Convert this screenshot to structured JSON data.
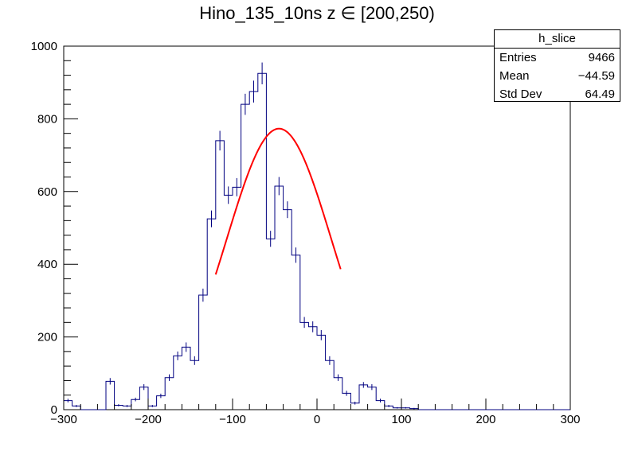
{
  "chart_data": {
    "type": "bar",
    "title": "Hino_135_10ns z  ∈ [200,250)",
    "xlabel": "",
    "ylabel": "",
    "xlim": [
      -300,
      300
    ],
    "ylim": [
      0,
      1000
    ],
    "xticks": [
      -300,
      -200,
      -100,
      0,
      100,
      200,
      300
    ],
    "yticks": [
      0,
      200,
      400,
      600,
      800,
      1000
    ],
    "grid": false,
    "legend": "none",
    "bin_width": 10,
    "bin_left_edges": [
      -300,
      -290,
      -280,
      -270,
      -260,
      -250,
      -240,
      -230,
      -220,
      -210,
      -200,
      -190,
      -180,
      -170,
      -160,
      -150,
      -140,
      -130,
      -120,
      -110,
      -100,
      -90,
      -80,
      -70,
      -60,
      -50,
      -40,
      -30,
      -20,
      -10,
      0,
      10,
      20,
      30,
      40,
      50,
      60,
      70,
      80,
      90,
      100,
      110,
      120,
      130,
      140,
      150,
      160,
      170,
      180,
      190,
      200,
      210,
      220,
      230,
      240,
      250,
      260,
      270,
      280,
      290
    ],
    "values": [
      25,
      10,
      0,
      0,
      0,
      78,
      12,
      10,
      28,
      62,
      10,
      38,
      88,
      148,
      172,
      135,
      315,
      525,
      740,
      590,
      612,
      840,
      875,
      925,
      470,
      615,
      550,
      425,
      240,
      228,
      205,
      135,
      88,
      45,
      18,
      68,
      62,
      25,
      10,
      5,
      5,
      3,
      0,
      0,
      0,
      0,
      0,
      0,
      0,
      0,
      0,
      0,
      0,
      0,
      0,
      0,
      0,
      0,
      0,
      0
    ],
    "errors": [
      5,
      3,
      0,
      0,
      0,
      9,
      3,
      3,
      5,
      8,
      3,
      6,
      9,
      12,
      13,
      12,
      18,
      23,
      27,
      24,
      25,
      29,
      30,
      30,
      22,
      25,
      23,
      21,
      15,
      15,
      14,
      12,
      9,
      7,
      4,
      8,
      8,
      5,
      3,
      2,
      2,
      2,
      0,
      0,
      0,
      0,
      0,
      0,
      0,
      0,
      0,
      0,
      0,
      0,
      0,
      0,
      0,
      0,
      0,
      0
    ],
    "fit": {
      "type": "gaussian",
      "constant": 773,
      "mean": -45,
      "sigma": 62,
      "x_range": [
        -120,
        28
      ]
    },
    "colors": {
      "histogram": "#000080",
      "fit": "#ff0000",
      "axes": "#000000"
    }
  },
  "stats_box": {
    "name": "h_slice",
    "entries_label": "Entries",
    "entries_value": "9466",
    "mean_label": "Mean",
    "mean_value": "−44.59",
    "stddev_label": "Std Dev",
    "stddev_value": "64.49"
  }
}
